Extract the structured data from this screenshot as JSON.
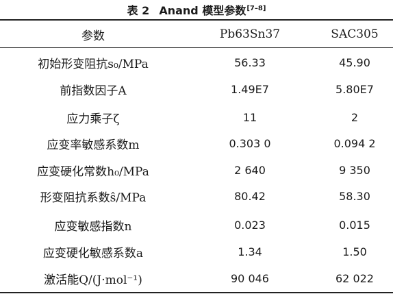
{
  "caption": {
    "label": "表 2",
    "title": "Anand 模型参数",
    "ref": "[7–8]"
  },
  "table": {
    "headers": [
      "参数",
      "Pb63Sn37",
      "SAC305"
    ],
    "rows": [
      {
        "param": "初始形变阻抗s₀/MPa",
        "pb63sn37": "56.33",
        "sac305": "45.90"
      },
      {
        "param": "前指数因子A",
        "pb63sn37": "1.49E7",
        "sac305": "5.80E7"
      },
      {
        "param": "应力乘子ζ",
        "pb63sn37": "11",
        "sac305": "2"
      },
      {
        "param": "应变率敏感系数m",
        "pb63sn37": "0.303 0",
        "sac305": "0.094 2"
      },
      {
        "param": "应变硬化常数h₀/MPa",
        "pb63sn37": "2 640",
        "sac305": "9 350"
      },
      {
        "param": "形变阻抗系数ŝ/MPa",
        "pb63sn37": "80.42",
        "sac305": "58.30"
      },
      {
        "param": "应变敏感指数n",
        "pb63sn37": "0.023",
        "sac305": "0.015"
      },
      {
        "param": "应变硬化敏感系数a",
        "pb63sn37": "1.34",
        "sac305": "1.50"
      },
      {
        "param": "激活能Q/(J·mol⁻¹)",
        "pb63sn37": "90 046",
        "sac305": "62 022"
      }
    ]
  }
}
